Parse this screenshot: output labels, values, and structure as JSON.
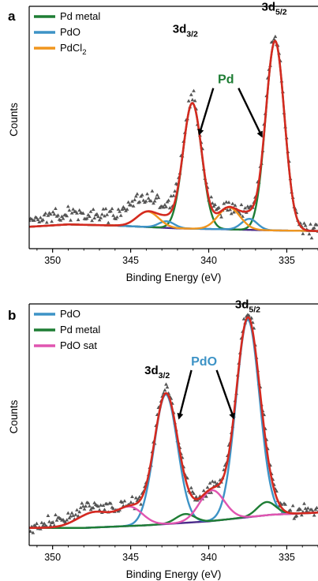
{
  "chart_data": [
    {
      "panel": "a",
      "type": "line",
      "xlabel": "Binding Energy (eV)",
      "ylabel": "Counts",
      "x_reversed": true,
      "xlim": [
        351.5,
        333
      ],
      "ylim": [
        -0.08,
        1.02
      ],
      "xticks": [
        350,
        345,
        340,
        335
      ],
      "legend": [
        {
          "name": "Pd metal",
          "color": "#1e7d34"
        },
        {
          "name": "PdO",
          "color": "#3d93c6"
        },
        {
          "name": "PdCl",
          "sub": "2",
          "color": "#f0961e"
        }
      ],
      "peak_labels": [
        {
          "main": "3d",
          "sub": "3/2",
          "x": 341.5,
          "y": 0.9
        },
        {
          "main": "3d",
          "sub": "5/2",
          "x": 335.8,
          "y": 1.0
        }
      ],
      "annotation": {
        "text": "Pd",
        "color": "#1e7d34",
        "x": 338.9,
        "y": 0.67,
        "arrows": [
          {
            "to_x": 340.6,
            "to_y": 0.44
          },
          {
            "to_x": 336.6,
            "to_y": 0.43
          }
        ]
      },
      "components": [
        {
          "name": "Pd metal",
          "color": "#1e7d34",
          "peaks": [
            {
              "center": 335.75,
              "height": 0.86,
              "width": 0.6
            },
            {
              "center": 341.05,
              "height": 0.57,
              "width": 0.6
            }
          ]
        },
        {
          "name": "PdO",
          "color": "#3d93c6",
          "peaks": [
            {
              "center": 337.4,
              "height": 0.05,
              "width": 0.5
            },
            {
              "center": 342.7,
              "height": 0.03,
              "width": 0.5
            }
          ]
        },
        {
          "name": "PdCl2",
          "color": "#f0961e",
          "peaks": [
            {
              "center": 338.7,
              "height": 0.1,
              "width": 0.7
            },
            {
              "center": 343.9,
              "height": 0.07,
              "width": 0.7
            }
          ]
        }
      ],
      "background": [
        [
          352.5,
          0.015
        ],
        [
          349,
          0.03
        ],
        [
          346,
          0.025
        ],
        [
          342,
          0.012
        ],
        [
          339,
          0.008
        ],
        [
          336,
          0.003
        ],
        [
          333,
          0.0
        ]
      ],
      "background_color": "#4a2a8a",
      "envelope_color": "#d42a20",
      "data_color": "#555555",
      "data_extras": [
        {
          "center": 349,
          "height": 0.045,
          "width": 2.5
        },
        {
          "center": 343.8,
          "height": 0.04,
          "width": 1.4
        },
        {
          "center": 344.9,
          "height": 0.03,
          "width": 1.0
        }
      ]
    },
    {
      "panel": "b",
      "type": "line",
      "xlabel": "Binding Energy (eV)",
      "ylabel": "Counts",
      "x_reversed": true,
      "xlim": [
        351.5,
        333
      ],
      "ylim": [
        -0.08,
        1.02
      ],
      "xticks": [
        350,
        345,
        340,
        335
      ],
      "legend": [
        {
          "name": "PdO",
          "color": "#3d93c6"
        },
        {
          "name": "Pd metal",
          "color": "#1e7d34"
        },
        {
          "name": "PdO sat",
          "color": "#e055b0"
        }
      ],
      "peak_labels": [
        {
          "main": "3d",
          "sub": "3/2",
          "x": 343.3,
          "y": 0.7
        },
        {
          "main": "3d",
          "sub": "5/2",
          "x": 337.5,
          "y": 1.0
        }
      ],
      "annotation": {
        "text": "PdO",
        "color": "#3d93c6",
        "x": 340.3,
        "y": 0.74,
        "arrows": [
          {
            "to_x": 341.9,
            "to_y": 0.5
          },
          {
            "to_x": 338.4,
            "to_y": 0.5
          }
        ]
      },
      "components": [
        {
          "name": "PdO",
          "color": "#3d93c6",
          "peaks": [
            {
              "center": 337.5,
              "height": 0.9,
              "width": 0.75
            },
            {
              "center": 342.75,
              "height": 0.59,
              "width": 0.75
            }
          ]
        },
        {
          "name": "Pd metal",
          "color": "#1e7d34",
          "peaks": [
            {
              "center": 336.3,
              "height": 0.06,
              "width": 0.6
            },
            {
              "center": 341.5,
              "height": 0.04,
              "width": 0.6
            }
          ]
        },
        {
          "name": "PdO sat",
          "color": "#e055b0",
          "peaks": [
            {
              "center": 339.8,
              "height": 0.14,
              "width": 0.8
            },
            {
              "center": 345.0,
              "height": 0.08,
              "width": 0.8
            },
            {
              "center": 347.3,
              "height": 0.07,
              "width": 1.1
            }
          ]
        }
      ],
      "background": [
        [
          352.5,
          0.0
        ],
        [
          348,
          0.0
        ],
        [
          344,
          0.012
        ],
        [
          340,
          0.03
        ],
        [
          336,
          0.06
        ],
        [
          333,
          0.07
        ]
      ],
      "background_color": "#4a2a8a",
      "envelope_color": "#d42a20",
      "data_color": "#555555",
      "data_extras": [
        {
          "center": 348.5,
          "height": 0.03,
          "width": 1.6
        }
      ]
    }
  ]
}
